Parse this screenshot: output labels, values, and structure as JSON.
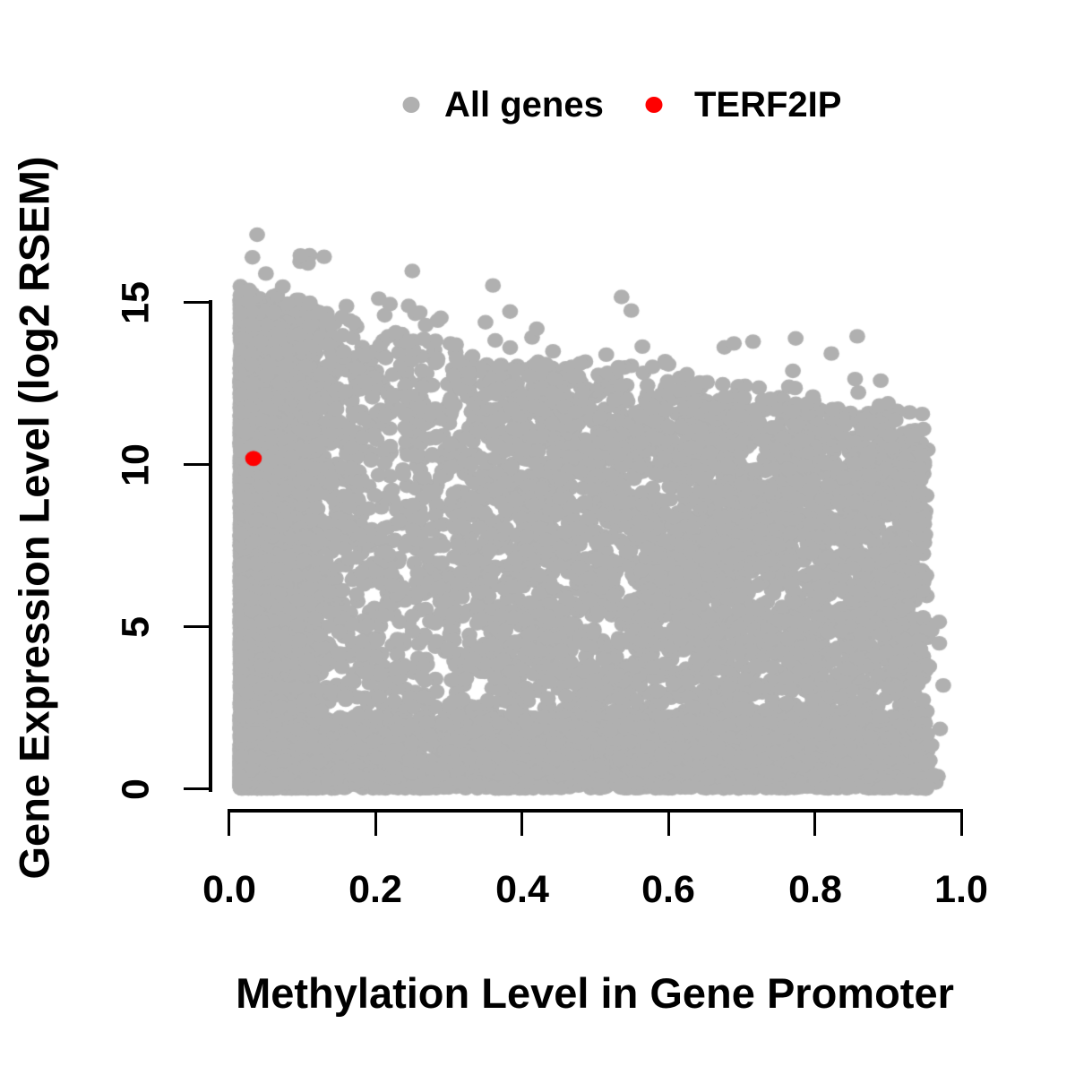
{
  "legend": {
    "items": [
      {
        "label": "All genes",
        "color": "#b0b0b0"
      },
      {
        "label": "TERF2IP",
        "color": "#ff0000"
      }
    ]
  },
  "chart_data": {
    "type": "scatter",
    "title": "",
    "xlabel": "Methylation Level in Gene Promoter",
    "ylabel": "Gene Expression Level (log2 RSEM)",
    "xlim": [
      0,
      1
    ],
    "ylim": [
      0,
      15
    ],
    "grid": false,
    "legend_position": "top-center",
    "x_ticks": [
      "0.0",
      "0.2",
      "0.4",
      "0.6",
      "0.8",
      "1.0"
    ],
    "x_tick_values": [
      0,
      0.2,
      0.4,
      0.6,
      0.8,
      1.0
    ],
    "y_ticks": [
      "0",
      "5",
      "10",
      "15"
    ],
    "y_tick_values": [
      0,
      5,
      10,
      15
    ],
    "axis_color": "#000000",
    "series": [
      {
        "name": "All genes",
        "role": "dense-background-cloud",
        "marker": "filled-circle",
        "color": "#b0b0b0",
        "marker_radius_px": 9,
        "n_points": 13000,
        "seed": 7,
        "x_range": [
          0.015,
          0.975
        ],
        "y_range": [
          0,
          17.1
        ],
        "description": "Dense cloud of all genes; expression spans 0-15 at low methylation, upper envelope declines with increasing methylation; bottom band at 0 across full range; sparser toward high methylation.",
        "upper_envelope": [
          [
            0.0,
            15.2
          ],
          [
            0.1,
            14.6
          ],
          [
            0.2,
            13.9
          ],
          [
            0.35,
            13.3
          ],
          [
            0.5,
            12.8
          ],
          [
            0.65,
            12.3
          ],
          [
            0.8,
            11.9
          ],
          [
            0.95,
            11.3
          ]
        ],
        "notable_outliers": [
          [
            0.038,
            17.1
          ],
          [
            0.05,
            15.9
          ],
          [
            0.073,
            15.5
          ],
          [
            0.11,
            15.0
          ],
          [
            0.16,
            14.9
          ],
          [
            0.26,
            14.7
          ],
          [
            0.35,
            14.4
          ],
          [
            0.42,
            14.2
          ],
          [
            0.515,
            13.4
          ],
          [
            0.6,
            13.1
          ],
          [
            0.64,
            12.5
          ],
          [
            0.77,
            12.9
          ],
          [
            0.89,
            12.6
          ],
          [
            0.9,
            11.9
          ],
          [
            0.97,
            4.5
          ]
        ]
      },
      {
        "name": "TERF2IP",
        "marker": "filled-circle",
        "color": "#ff0000",
        "marker_radius_px": 9.3,
        "points": [
          [
            0.033,
            10.2
          ]
        ]
      }
    ]
  }
}
